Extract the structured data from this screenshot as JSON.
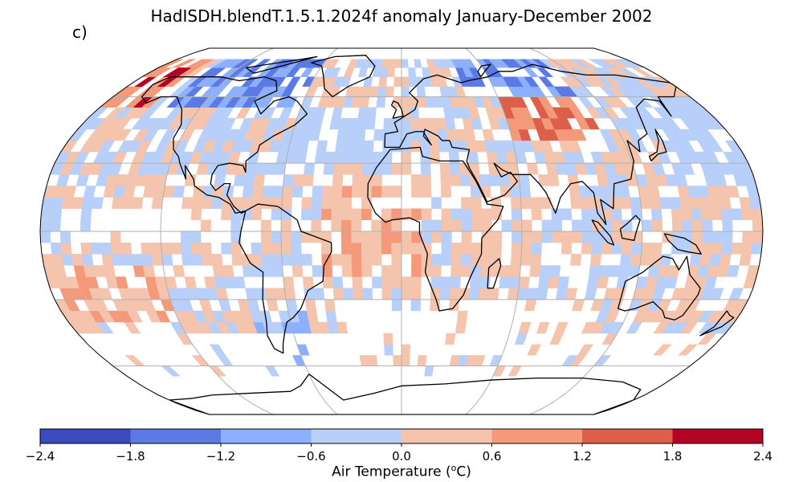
{
  "title": "HadISDH.blendT.1.5.1.2024f anomaly January-December 2002",
  "panel_label": "c)",
  "colorbar": {
    "label": "Air Temperature (",
    "label_sup": "o",
    "label_unit": "C)",
    "ticks": [
      "−2.4",
      "−1.8",
      "−1.2",
      "−0.6",
      "0.0",
      "0.6",
      "1.2",
      "1.8",
      "2.4"
    ],
    "colors": [
      "#3b4cc0",
      "#5b7ae5",
      "#8caffe",
      "#b7cff9",
      "#f5c4ad",
      "#f49a7b",
      "#dd5f4b",
      "#b40426"
    ]
  },
  "map": {
    "projection": "Robinson",
    "land_color": "none",
    "coastline_color": "#000000",
    "gridline_color": "#b0b0b0"
  }
}
